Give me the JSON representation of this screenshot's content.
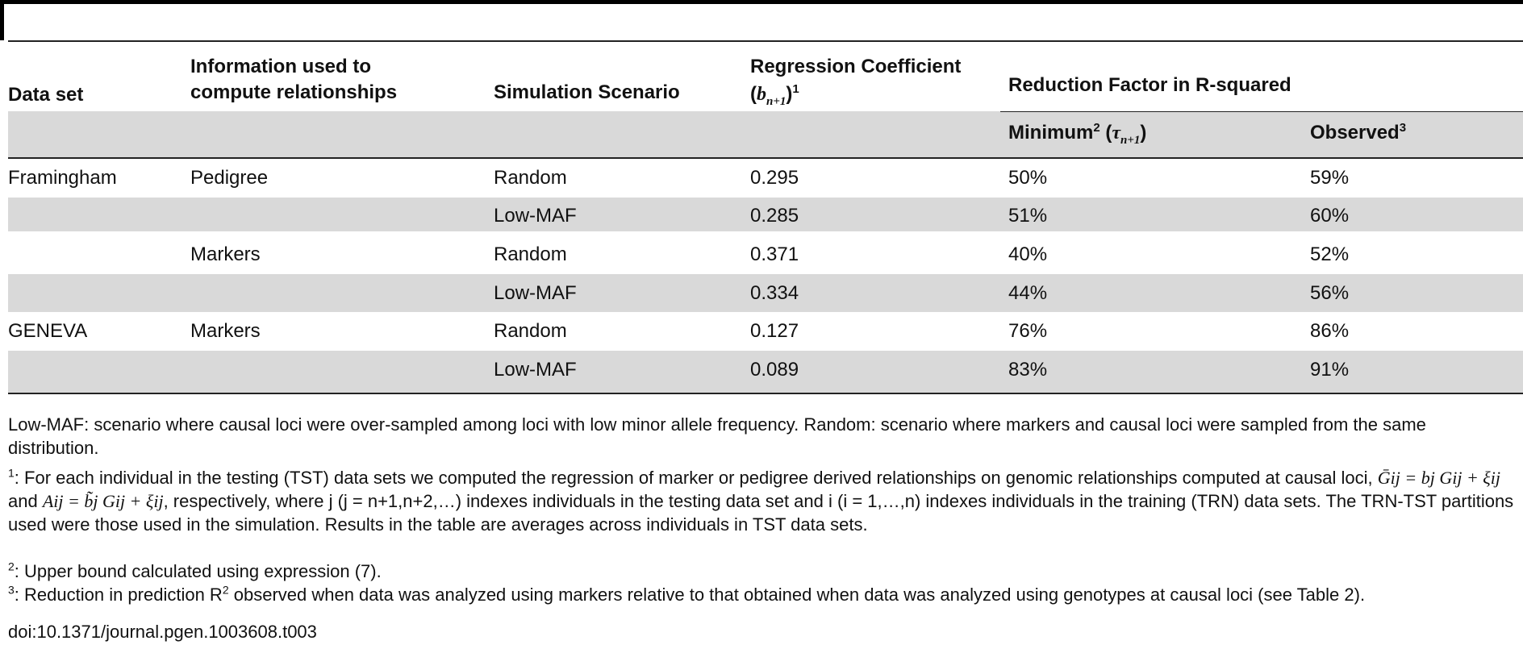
{
  "table": {
    "headers": {
      "col1": "Data set",
      "col2_line1": "Information used to",
      "col2_line2": "compute relationships",
      "col3": "Simulation Scenario",
      "col4_line1": "Regression Coefficient",
      "col4_symbol": "b",
      "col4_sub": "n+1",
      "col4_sup": "1",
      "col5": "Reduction Factor in R-squared",
      "col5a": "Minimum",
      "col5a_sup": "2",
      "col5a_symbol": "τ",
      "col5a_sub": "n+1",
      "col5b": "Observed",
      "col5b_sup": "3"
    },
    "rows": [
      {
        "dataset": "Framingham",
        "info": "Pedigree",
        "scenario": "Random",
        "coef": "0.295",
        "minimum": "50%",
        "observed": "59%"
      },
      {
        "dataset": "",
        "info": "",
        "scenario": "Low-MAF",
        "coef": "0.285",
        "minimum": "51%",
        "observed": "60%"
      },
      {
        "dataset": "",
        "info": "Markers",
        "scenario": "Random",
        "coef": "0.371",
        "minimum": "40%",
        "observed": "52%"
      },
      {
        "dataset": "",
        "info": "",
        "scenario": "Low-MAF",
        "coef": "0.334",
        "minimum": "44%",
        "observed": "56%"
      },
      {
        "dataset": "GENEVA",
        "info": "Markers",
        "scenario": "Random",
        "coef": "0.127",
        "minimum": "76%",
        "observed": "86%"
      },
      {
        "dataset": "",
        "info": "",
        "scenario": "Low-MAF",
        "coef": "0.089",
        "minimum": "83%",
        "observed": "91%"
      }
    ]
  },
  "notes": {
    "abbrev": "Low-MAF: scenario where causal loci were over-sampled among loci with low minor allele frequency. Random: scenario where markers and causal loci were sampled from the same distribution.",
    "fn1_mark": "1",
    "fn1_a": ": For each individual in the testing (TST) data sets we computed the regression of marker or pedigree derived relationships on genomic relationships computed at causal loci, ",
    "fn1_eq1": "Ḡij = bj Gij + ξij",
    "fn1_b": " and ",
    "fn1_eq2": "Aij = b̃j Gij + ξij",
    "fn1_c": ", respectively, where j (j = n+1,n+2,…) indexes individuals in the testing data set and i (i = 1,…,n) indexes individuals in the training (TRN) data sets. The TRN-TST partitions used were those used in the simulation. Results in the table are averages across individuals in TST data sets.",
    "fn2_mark": "2",
    "fn2": ": Upper bound calculated using expression (7).",
    "fn3_mark": "3",
    "fn3_a": ": Reduction in prediction R",
    "fn3_sup": "2",
    "fn3_b": " observed when data was analyzed using markers relative to that obtained when data was analyzed using genotypes at causal loci (see Table 2).",
    "doi": "doi:10.1371/journal.pgen.1003608.t003"
  }
}
